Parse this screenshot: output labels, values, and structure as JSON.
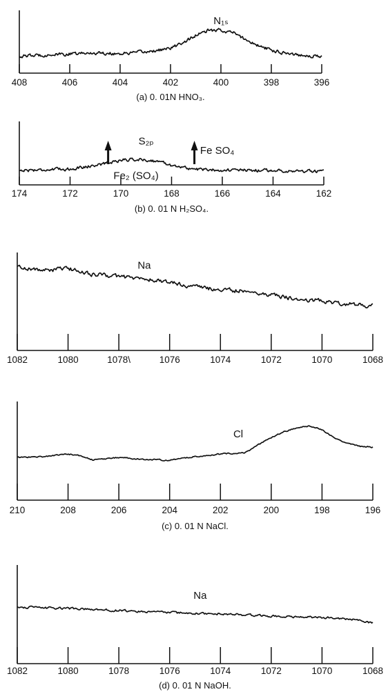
{
  "chart_data": [
    {
      "type": "line",
      "panel": "a",
      "caption": "(a) 0. 01N HNO₃.",
      "xlim": [
        408,
        396
      ],
      "x_reversed": true,
      "x_ticks": [
        408,
        406,
        404,
        402,
        400,
        398,
        396
      ],
      "ylim": [
        0,
        1
      ],
      "annotations": [
        {
          "text": "N₁ₛ",
          "x": 400.0,
          "y": 1.0
        }
      ],
      "arrows": [],
      "series": [
        {
          "x": [
            408,
            407,
            406,
            405,
            404,
            403,
            402,
            401.5,
            401,
            400.5,
            400,
            399.5,
            399,
            398.5,
            398,
            397,
            396
          ],
          "y": [
            0.26,
            0.29,
            0.31,
            0.34,
            0.32,
            0.36,
            0.44,
            0.58,
            0.74,
            0.85,
            0.86,
            0.8,
            0.64,
            0.5,
            0.4,
            0.3,
            0.25
          ]
        }
      ],
      "noise": 0.06
    },
    {
      "type": "line",
      "panel": "b",
      "caption": "(b) 0. 01 N H₂SO₄.",
      "xlim": [
        174,
        162
      ],
      "x_reversed": true,
      "x_ticks": [
        174,
        172,
        170,
        168,
        166,
        164,
        162
      ],
      "ylim": [
        0,
        1
      ],
      "annotations": [
        {
          "text": "S₂ₚ",
          "x": 169.0,
          "y": 1.05
        },
        {
          "text": "Fe SO₄",
          "x": 166.2,
          "y": 0.78
        },
        {
          "text": "Fe₂ (SO₄)",
          "x": 169.4,
          "y": 0.05
        }
      ],
      "arrows": [
        {
          "x": 170.5
        },
        {
          "x": 167.1
        }
      ],
      "series": [
        {
          "x": [
            174,
            173,
            172,
            171,
            170.5,
            170,
            169.5,
            169,
            168.5,
            168,
            167.5,
            167,
            166,
            165,
            164,
            163,
            162
          ],
          "y": [
            0.3,
            0.32,
            0.34,
            0.45,
            0.52,
            0.6,
            0.62,
            0.6,
            0.56,
            0.45,
            0.38,
            0.33,
            0.31,
            0.3,
            0.3,
            0.28,
            0.27
          ]
        }
      ],
      "noise": 0.07
    },
    {
      "type": "line",
      "panel": "na1",
      "caption": "",
      "xlim": [
        1082,
        1068
      ],
      "x_reversed": true,
      "x_ticks": [
        1082,
        1080,
        1078,
        1076,
        1074,
        1072,
        1070,
        1068
      ],
      "tick_labels": [
        "1082",
        "1080",
        "1078\\",
        "1076",
        "1074",
        "1072",
        "1070",
        "1068"
      ],
      "ylim": [
        0,
        1
      ],
      "annotations": [
        {
          "text": "Na",
          "x": 1077.0,
          "y": 0.85
        }
      ],
      "arrows": [],
      "series": [
        {
          "x": [
            1082,
            1081,
            1080,
            1079,
            1078,
            1077,
            1076,
            1075,
            1074,
            1073,
            1072,
            1071,
            1070,
            1069,
            1068
          ],
          "y": [
            0.88,
            0.82,
            0.85,
            0.76,
            0.73,
            0.69,
            0.64,
            0.57,
            0.52,
            0.51,
            0.45,
            0.38,
            0.36,
            0.31,
            0.28
          ]
        }
      ],
      "noise": 0.05
    },
    {
      "type": "line",
      "panel": "c",
      "caption": "(c) 0. 01 N NaCl.",
      "xlim": [
        210,
        196
      ],
      "x_reversed": true,
      "x_ticks": [
        210,
        208,
        206,
        204,
        202,
        200,
        198,
        196
      ],
      "ylim": [
        0,
        1
      ],
      "annotations": [
        {
          "text": "Cl",
          "x": 201.3,
          "y": 0.66
        }
      ],
      "arrows": [],
      "series": [
        {
          "x": [
            210,
            209,
            208,
            207.5,
            207,
            206,
            205,
            204,
            203,
            202,
            201,
            200.5,
            200,
            199.5,
            199,
            198.5,
            198,
            197.5,
            197,
            196.5,
            196
          ],
          "y": [
            0.37,
            0.38,
            0.42,
            0.39,
            0.33,
            0.37,
            0.34,
            0.33,
            0.38,
            0.42,
            0.44,
            0.55,
            0.66,
            0.74,
            0.8,
            0.82,
            0.77,
            0.66,
            0.57,
            0.53,
            0.52
          ]
        }
      ],
      "noise": 0.015
    },
    {
      "type": "line",
      "panel": "d",
      "caption": "(d) 0. 01 N NaOH.",
      "xlim": [
        1082,
        1068
      ],
      "x_reversed": true,
      "x_ticks": [
        1082,
        1080,
        1078,
        1076,
        1074,
        1072,
        1070,
        1068
      ],
      "ylim": [
        0,
        1
      ],
      "annotations": [
        {
          "text": "Na",
          "x": 1074.8,
          "y": 0.72
        }
      ],
      "arrows": [],
      "series": [
        {
          "x": [
            1082,
            1080,
            1078,
            1076,
            1074,
            1072,
            1070,
            1069,
            1068.5,
            1068
          ],
          "y": [
            0.6,
            0.58,
            0.55,
            0.52,
            0.5,
            0.47,
            0.45,
            0.43,
            0.41,
            0.37
          ]
        }
      ],
      "noise": 0.025
    }
  ]
}
